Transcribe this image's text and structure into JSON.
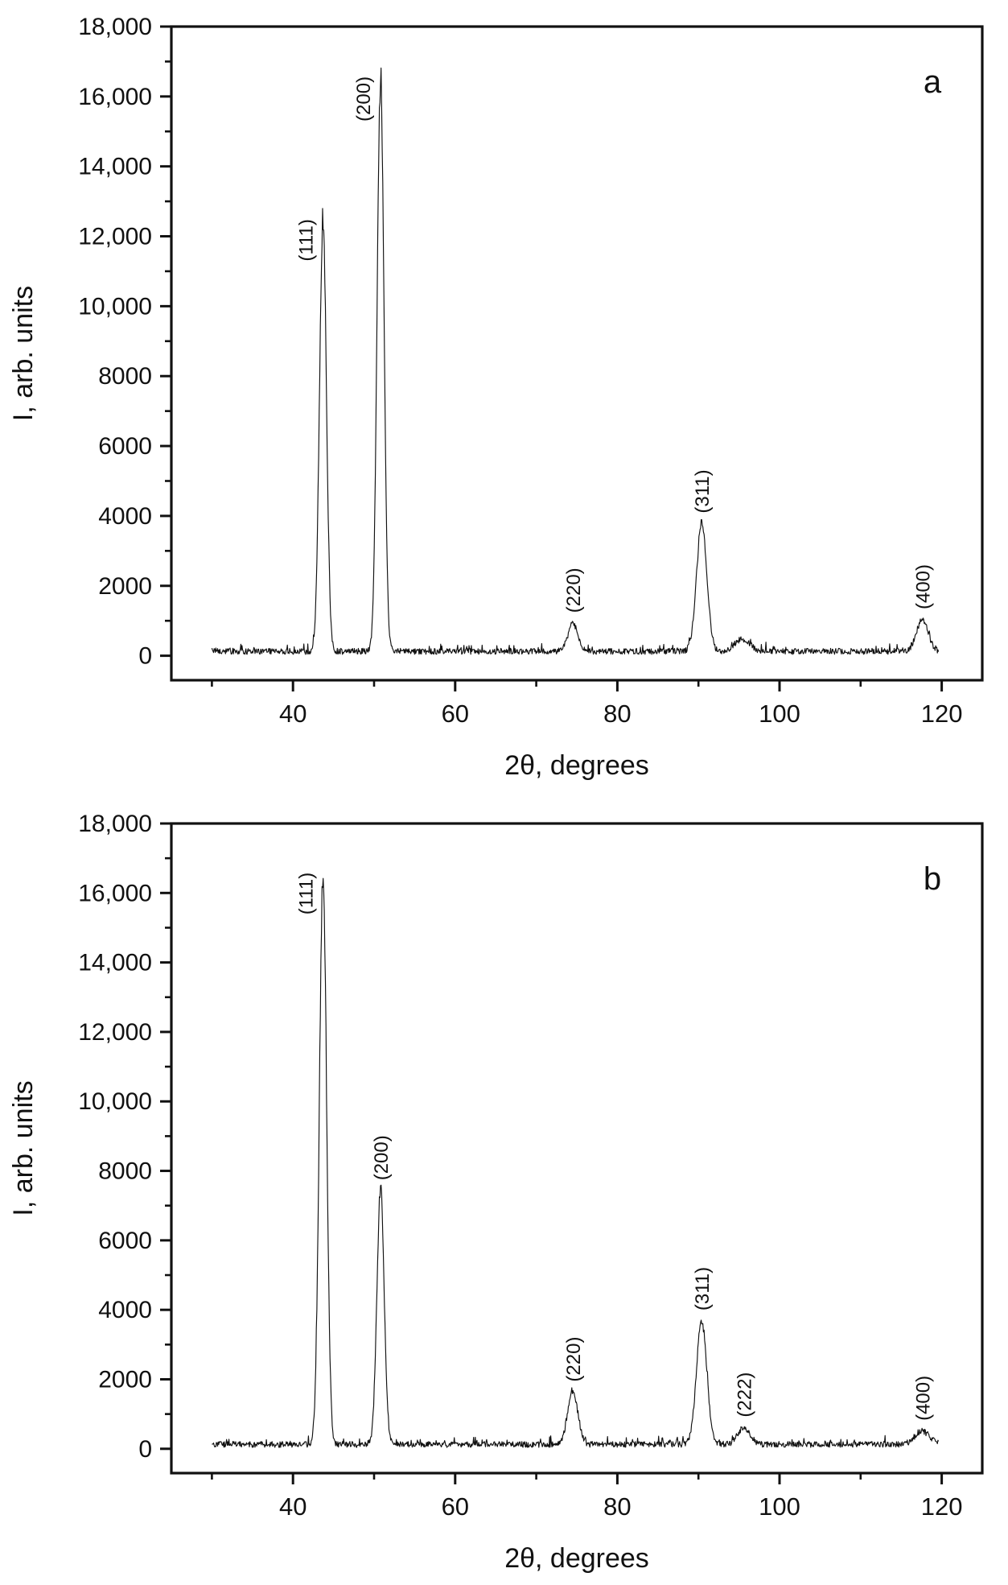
{
  "figure": {
    "background_color": "#ffffff",
    "line_color": "#111111",
    "description": "Two stacked X-ray diffraction patterns"
  },
  "chart_data": [
    {
      "type": "line",
      "panel_label": "a",
      "title": "",
      "xlabel": "2θ, degrees",
      "ylabel": "I, arb. units",
      "xlim": [
        25,
        125
      ],
      "ylim": [
        -700,
        18000
      ],
      "grid": false,
      "legend": "none",
      "x_ticks_major": [
        40,
        60,
        80,
        100,
        120
      ],
      "x_tick_labels": [
        "40",
        "60",
        "80",
        "100",
        "120"
      ],
      "x_ticks_minor": [
        30,
        50,
        70,
        90,
        110
      ],
      "y_ticks_major": [
        0,
        2000,
        4000,
        6000,
        8000,
        10000,
        12000,
        14000,
        16000,
        18000
      ],
      "y_tick_labels": [
        "0",
        "2000",
        "4000",
        "6000",
        "8000",
        "10,000",
        "12,000",
        "14,000",
        "16,000",
        "18,000"
      ],
      "y_ticks_minor": [
        1000,
        3000,
        5000,
        7000,
        9000,
        11000,
        13000,
        15000,
        17000
      ],
      "data_x_range": [
        30,
        119.6
      ],
      "baseline_noise": {
        "mean": 150,
        "range": [
          0,
          450
        ]
      },
      "peaks": [
        {
          "label": "(111)",
          "two_theta": 43.7,
          "intensity": 12400,
          "fwhm": 1.0,
          "label_side": "left"
        },
        {
          "label": "(200)",
          "two_theta": 50.8,
          "intensity": 16400,
          "fwhm": 1.0,
          "label_side": "left"
        },
        {
          "label": "(220)",
          "two_theta": 74.5,
          "intensity": 800,
          "fwhm": 1.4,
          "label_side": "above"
        },
        {
          "label": "(311)",
          "two_theta": 90.4,
          "intensity": 3650,
          "fwhm": 1.5,
          "label_side": "above"
        },
        {
          "label": "",
          "two_theta": 95.4,
          "intensity": 350,
          "fwhm": 2.2,
          "label_side": "none"
        },
        {
          "label": "(400)",
          "two_theta": 117.6,
          "intensity": 900,
          "fwhm": 1.7,
          "label_side": "above"
        }
      ]
    },
    {
      "type": "line",
      "panel_label": "b",
      "title": "",
      "xlabel": "2θ, degrees",
      "ylabel": "I, arb. units",
      "xlim": [
        25,
        125
      ],
      "ylim": [
        -700,
        18000
      ],
      "grid": false,
      "legend": "none",
      "x_ticks_major": [
        40,
        60,
        80,
        100,
        120
      ],
      "x_tick_labels": [
        "40",
        "60",
        "80",
        "100",
        "120"
      ],
      "x_ticks_minor": [
        30,
        50,
        70,
        90,
        110
      ],
      "y_ticks_major": [
        0,
        2000,
        4000,
        6000,
        8000,
        10000,
        12000,
        14000,
        16000,
        18000
      ],
      "y_tick_labels": [
        "0",
        "2000",
        "4000",
        "6000",
        "8000",
        "10,000",
        "12,000",
        "14,000",
        "16,000",
        "18,000"
      ],
      "y_ticks_minor": [
        1000,
        3000,
        5000,
        7000,
        9000,
        11000,
        13000,
        15000,
        17000
      ],
      "data_x_range": [
        30,
        119.6
      ],
      "baseline_noise": {
        "mean": 150,
        "range": [
          0,
          450
        ]
      },
      "peaks": [
        {
          "label": "(111)",
          "two_theta": 43.7,
          "intensity": 16500,
          "fwhm": 1.05,
          "label_side": "left"
        },
        {
          "label": "(200)",
          "two_theta": 50.8,
          "intensity": 7300,
          "fwhm": 1.05,
          "label_side": "above"
        },
        {
          "label": "(220)",
          "two_theta": 74.5,
          "intensity": 1500,
          "fwhm": 1.5,
          "label_side": "above"
        },
        {
          "label": "(311)",
          "two_theta": 90.4,
          "intensity": 3550,
          "fwhm": 1.5,
          "label_side": "above"
        },
        {
          "label": "(222)",
          "two_theta": 95.6,
          "intensity": 480,
          "fwhm": 1.8,
          "label_side": "above"
        },
        {
          "label": "(400)",
          "two_theta": 117.6,
          "intensity": 380,
          "fwhm": 2.2,
          "label_side": "above"
        }
      ]
    }
  ]
}
